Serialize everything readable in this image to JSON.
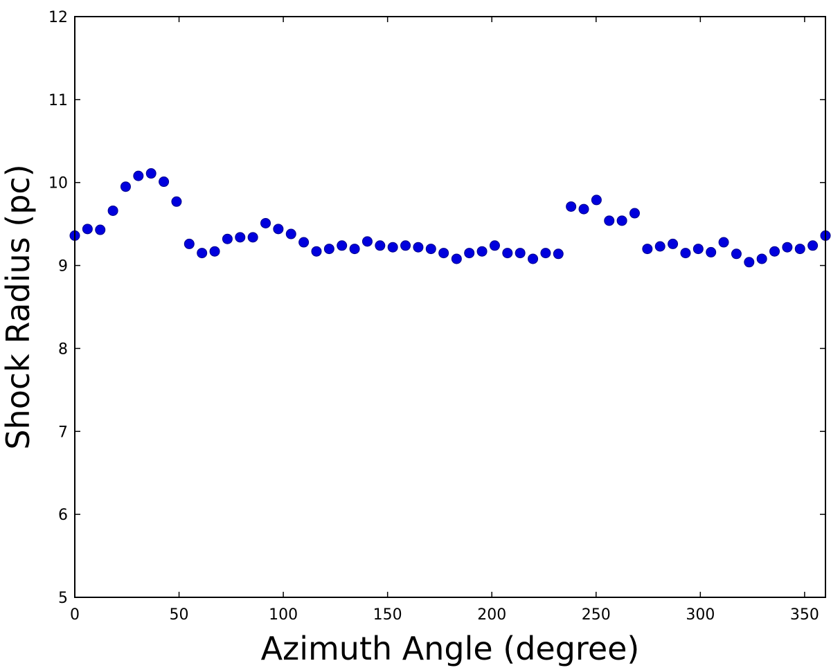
{
  "chart_data": {
    "type": "scatter",
    "xlabel": "Azimuth Angle (degree)",
    "ylabel": "Shock Radius (pc)",
    "xlim": [
      0,
      360
    ],
    "ylim": [
      5,
      12
    ],
    "xticks": [
      "0",
      "50",
      "100",
      "150",
      "200",
      "250",
      "300",
      "350"
    ],
    "yticks": [
      "5",
      "6",
      "7",
      "8",
      "9",
      "10",
      "11",
      "12"
    ],
    "grid": false,
    "marker_color": "#0000dd",
    "x": [
      0,
      6.1,
      12.2,
      18.3,
      24.4,
      30.5,
      36.6,
      42.7,
      48.8,
      54.9,
      61.0,
      67.1,
      73.2,
      79.3,
      85.4,
      91.5,
      97.6,
      103.7,
      109.8,
      115.9,
      122.0,
      128.1,
      134.2,
      140.3,
      146.4,
      152.5,
      158.6,
      164.7,
      170.8,
      176.9,
      183.1,
      189.2,
      195.3,
      201.4,
      207.5,
      213.6,
      219.7,
      225.8,
      231.9,
      238.0,
      244.1,
      250.2,
      256.3,
      262.4,
      268.5,
      274.6,
      280.7,
      286.8,
      292.9,
      299.0,
      305.1,
      311.2,
      317.3,
      323.4,
      329.5,
      335.6,
      341.7,
      347.8,
      353.9,
      360
    ],
    "y": [
      9.36,
      9.44,
      9.43,
      9.66,
      9.95,
      10.08,
      10.11,
      10.01,
      9.77,
      9.26,
      9.15,
      9.17,
      9.32,
      9.34,
      9.34,
      9.51,
      9.44,
      9.38,
      9.28,
      9.17,
      9.2,
      9.24,
      9.2,
      9.29,
      9.24,
      9.22,
      9.24,
      9.22,
      9.2,
      9.15,
      9.08,
      9.15,
      9.17,
      9.24,
      9.15,
      9.15,
      9.08,
      9.15,
      9.14,
      9.71,
      9.68,
      9.79,
      9.54,
      9.54,
      9.63,
      9.2,
      9.23,
      9.26,
      9.15,
      9.2,
      9.16,
      9.28,
      9.14,
      9.04,
      9.08,
      9.17,
      9.22,
      9.2,
      9.24,
      9.36
    ]
  }
}
